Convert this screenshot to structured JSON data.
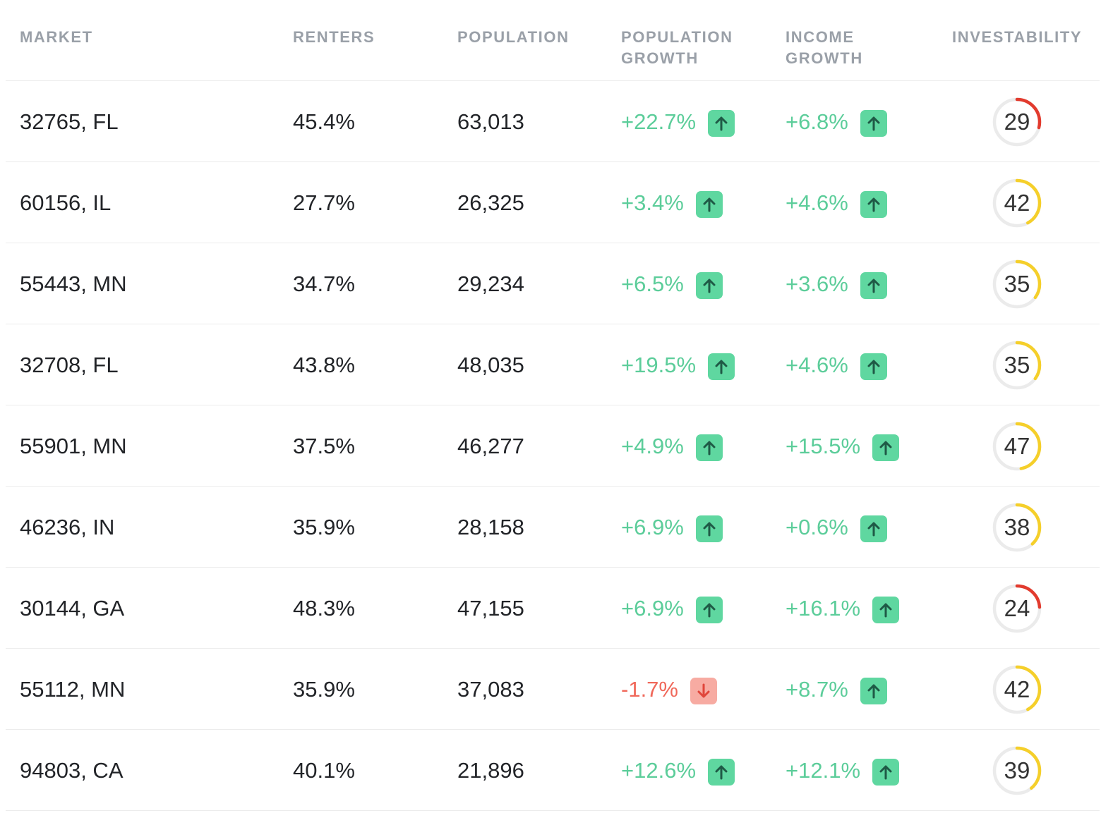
{
  "header": {
    "market": "MARKET",
    "renters": "RENTERS",
    "population": "POPULATION",
    "population_growth_l1": "POPULATION",
    "population_growth_l2": "GROWTH",
    "income_growth_l1": "INCOME",
    "income_growth_l2": "GROWTH",
    "investability": "INVESTABILITY"
  },
  "colors": {
    "up": "#5ccd9a",
    "down": "#f0685a",
    "up_badge": "#5fd7a0",
    "down_badge": "#f7aba2",
    "score_low": "#e23b2e",
    "score_mid": "#f5cf2a",
    "score_track": "#ebebeb"
  },
  "icons": {
    "up": "arrow-up-icon",
    "down": "arrow-down-icon"
  },
  "rows": [
    {
      "market": "32765, FL",
      "renters": "45.4%",
      "population": "63,013",
      "pop_growth": "+22.7%",
      "pop_dir": "up",
      "income_growth": "+6.8%",
      "income_dir": "up",
      "score": "29",
      "score_color": "red"
    },
    {
      "market": "60156, IL",
      "renters": "27.7%",
      "population": "26,325",
      "pop_growth": "+3.4%",
      "pop_dir": "up",
      "income_growth": "+4.6%",
      "income_dir": "up",
      "score": "42",
      "score_color": "yellow"
    },
    {
      "market": "55443, MN",
      "renters": "34.7%",
      "population": "29,234",
      "pop_growth": "+6.5%",
      "pop_dir": "up",
      "income_growth": "+3.6%",
      "income_dir": "up",
      "score": "35",
      "score_color": "yellow"
    },
    {
      "market": "32708, FL",
      "renters": "43.8%",
      "population": "48,035",
      "pop_growth": "+19.5%",
      "pop_dir": "up",
      "income_growth": "+4.6%",
      "income_dir": "up",
      "score": "35",
      "score_color": "yellow"
    },
    {
      "market": "55901, MN",
      "renters": "37.5%",
      "population": "46,277",
      "pop_growth": "+4.9%",
      "pop_dir": "up",
      "income_growth": "+15.5%",
      "income_dir": "up",
      "score": "47",
      "score_color": "yellow"
    },
    {
      "market": "46236, IN",
      "renters": "35.9%",
      "population": "28,158",
      "pop_growth": "+6.9%",
      "pop_dir": "up",
      "income_growth": "+0.6%",
      "income_dir": "up",
      "score": "38",
      "score_color": "yellow"
    },
    {
      "market": "30144, GA",
      "renters": "48.3%",
      "population": "47,155",
      "pop_growth": "+6.9%",
      "pop_dir": "up",
      "income_growth": "+16.1%",
      "income_dir": "up",
      "score": "24",
      "score_color": "red"
    },
    {
      "market": "55112, MN",
      "renters": "35.9%",
      "population": "37,083",
      "pop_growth": "-1.7%",
      "pop_dir": "down",
      "income_growth": "+8.7%",
      "income_dir": "up",
      "score": "42",
      "score_color": "yellow"
    },
    {
      "market": "94803, CA",
      "renters": "40.1%",
      "population": "21,896",
      "pop_growth": "+12.6%",
      "pop_dir": "up",
      "income_growth": "+12.1%",
      "income_dir": "up",
      "score": "39",
      "score_color": "yellow"
    }
  ]
}
